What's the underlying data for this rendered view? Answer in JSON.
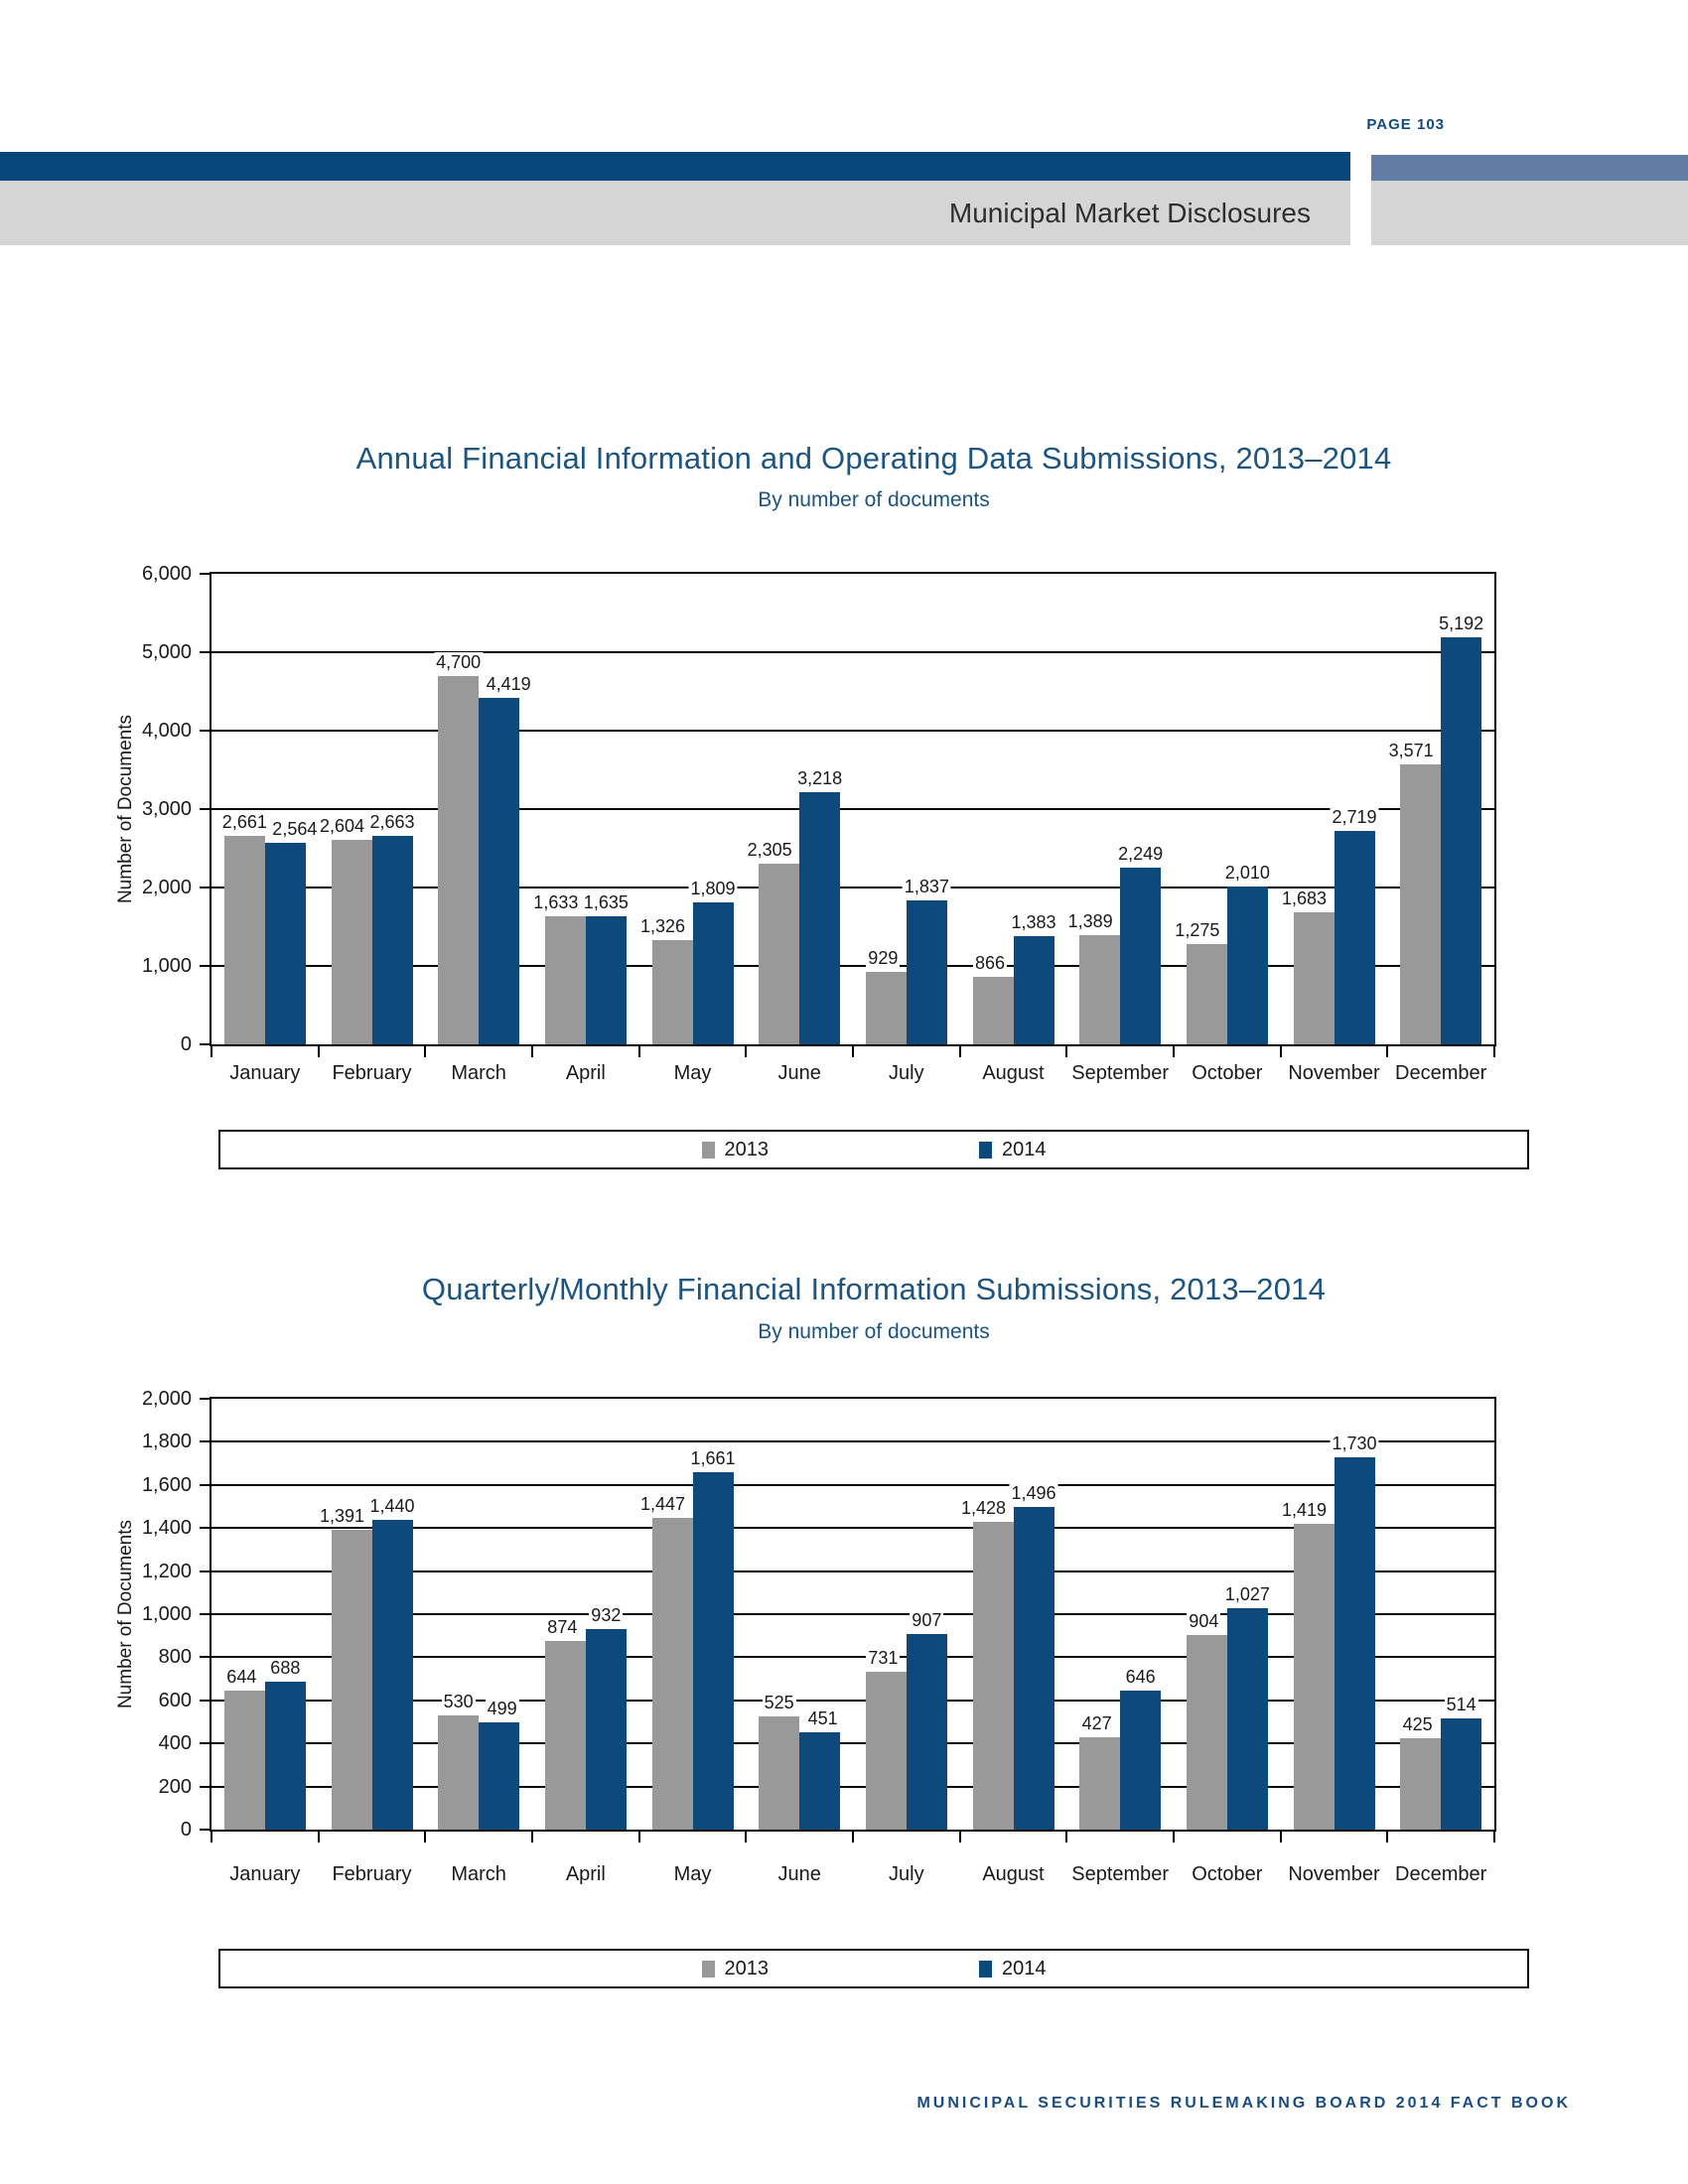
{
  "page": {
    "page_number": "PAGE 103",
    "section_header": "Municipal Market Disclosures",
    "footer": "MUNICIPAL SECURITIES RULEMAKING BOARD 2014 FACT BOOK"
  },
  "colors": {
    "bar_2013": "#999999",
    "bar_2014": "#0d4a7b",
    "header_navy": "#07457a",
    "header_slate": "#617da3",
    "header_gray": "#d5d5d5",
    "title_blue": "#1d5480",
    "axis_black": "#000000"
  },
  "legend": {
    "items": [
      {
        "label": "2013",
        "color": "#999999"
      },
      {
        "label": "2014",
        "color": "#0d4a7b"
      }
    ]
  },
  "chart_data": [
    {
      "type": "bar",
      "title": "Annual Financial Information and Operating Data Submissions, 2013–2014",
      "subtitle": "By number of documents",
      "ylabel": "Number of Documents",
      "categories": [
        "January",
        "February",
        "March",
        "April",
        "May",
        "June",
        "July",
        "August",
        "September",
        "October",
        "November",
        "December"
      ],
      "series": [
        {
          "name": "2013",
          "color": "#999999",
          "values": [
            2661,
            2604,
            4700,
            1633,
            1326,
            2305,
            929,
            866,
            1389,
            1275,
            1683,
            3571
          ]
        },
        {
          "name": "2014",
          "color": "#0d4a7b",
          "values": [
            2564,
            2663,
            4419,
            1635,
            1809,
            3218,
            1837,
            1383,
            2249,
            2010,
            2719,
            5192
          ]
        }
      ],
      "ylim": [
        0,
        6000
      ],
      "ytick_step": 1000,
      "grid": true,
      "legend_position": "bottom"
    },
    {
      "type": "bar",
      "title": "Quarterly/Monthly Financial Information Submissions, 2013–2014",
      "subtitle": "By number of documents",
      "ylabel": "Number of Documents",
      "categories": [
        "January",
        "February",
        "March",
        "April",
        "May",
        "June",
        "July",
        "August",
        "September",
        "October",
        "November",
        "December"
      ],
      "series": [
        {
          "name": "2013",
          "color": "#999999",
          "values": [
            644,
            1391,
            530,
            874,
            1447,
            525,
            731,
            1428,
            427,
            904,
            1419,
            425
          ]
        },
        {
          "name": "2014",
          "color": "#0d4a7b",
          "values": [
            688,
            1440,
            499,
            932,
            1661,
            451,
            907,
            1496,
            646,
            1027,
            1730,
            514
          ]
        }
      ],
      "ylim": [
        0,
        2000
      ],
      "ytick_step": 200,
      "grid": true,
      "legend_position": "bottom"
    }
  ]
}
